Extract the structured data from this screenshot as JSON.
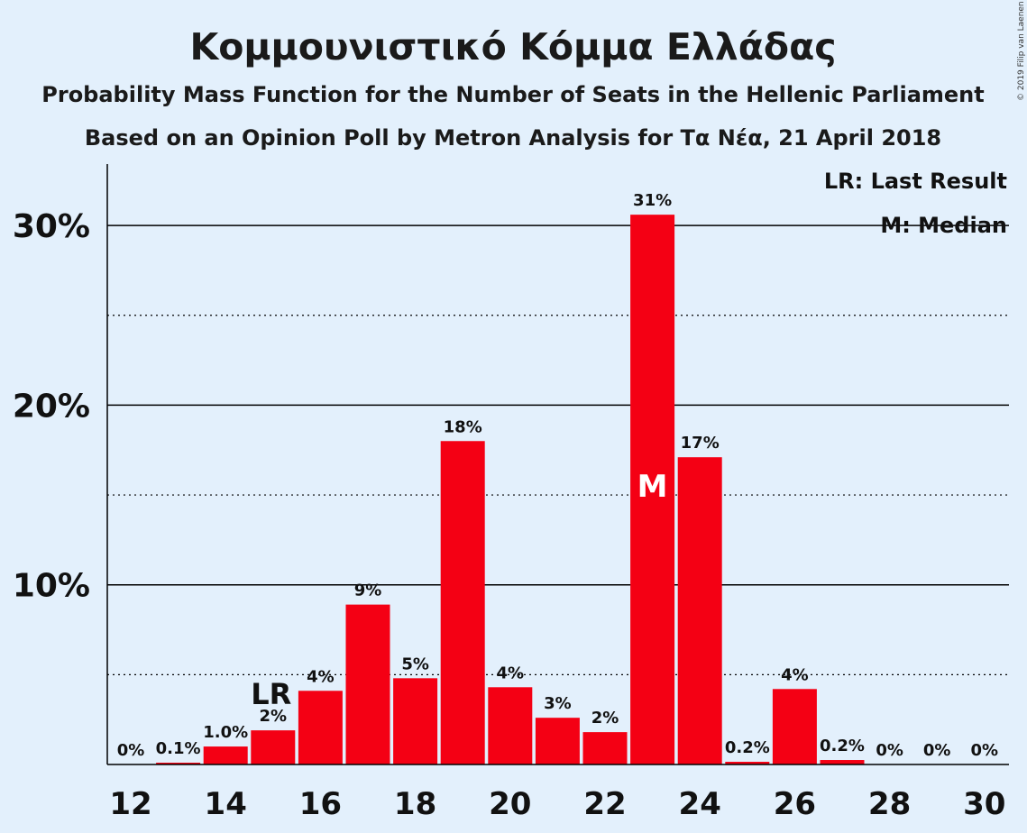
{
  "header": {
    "title": "Κομμουνιστικό Κόμμα Ελλάδας",
    "subtitle": "Probability Mass Function for the Number of Seats in the Hellenic Parliament",
    "subtitle2": "Based on an Opinion Poll by Metron Analysis for Τα Νέα, 21 April 2018"
  },
  "copyright": "© 2019 Filip van Laenen",
  "legend": {
    "lr": "LR: Last Result",
    "median": "M: Median"
  },
  "colors": {
    "bar": "#f40014",
    "background": "#e3f0fc"
  },
  "chart_data": {
    "type": "bar",
    "x": [
      12,
      13,
      14,
      15,
      16,
      17,
      18,
      19,
      20,
      21,
      22,
      23,
      24,
      25,
      26,
      27,
      28,
      29,
      30
    ],
    "values": [
      0,
      0.1,
      1.0,
      1.9,
      4.1,
      8.9,
      4.8,
      18.0,
      4.3,
      2.6,
      1.8,
      30.6,
      17.1,
      0.15,
      4.2,
      0.25,
      0,
      0,
      0
    ],
    "labels": [
      "0%",
      "0.1%",
      "1.0%",
      "2%",
      "4%",
      "9%",
      "5%",
      "18%",
      "4%",
      "3%",
      "2%",
      "31%",
      "17%",
      "0.2%",
      "4%",
      "0.2%",
      "0%",
      "0%",
      "0%"
    ],
    "x_ticks": [
      "12",
      "14",
      "16",
      "18",
      "20",
      "22",
      "24",
      "26",
      "28",
      "30"
    ],
    "y_ticks": [
      "10%",
      "20%",
      "30%"
    ],
    "ylim": [
      0,
      33
    ],
    "last_result_x": 15,
    "last_result_label": "LR",
    "median_x": 23,
    "median_label": "M",
    "legend_position": "top-right"
  }
}
